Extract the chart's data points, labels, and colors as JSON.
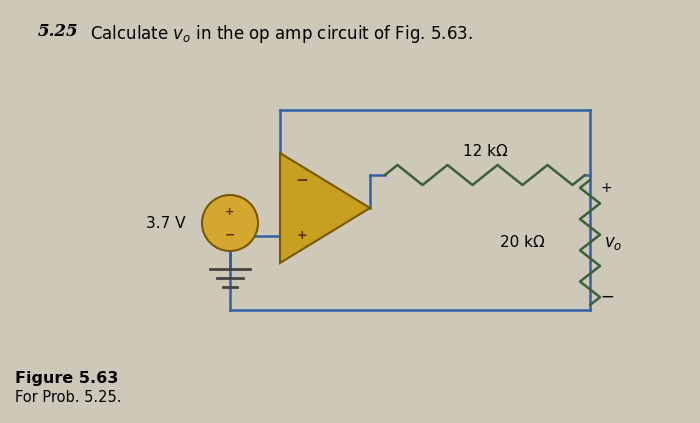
{
  "bg_color": "#cdc8b8",
  "wire_color": "#3060a8",
  "opamp_fill": "#c8a020",
  "opamp_edge": "#7a5800",
  "source_fill": "#d4a830",
  "source_edge": "#7a5800",
  "resistor_12k_color": "#3a6040",
  "resistor_20k_color": "#3a6040",
  "ground_color": "#444444",
  "label_12k": "12 kΩ",
  "label_20k": "20 kΩ",
  "label_v37": "3.7 V",
  "label_vo": "$v_o$",
  "figure_label": "Figure 5.63",
  "figure_sublabel": "For Prob. 5.25."
}
